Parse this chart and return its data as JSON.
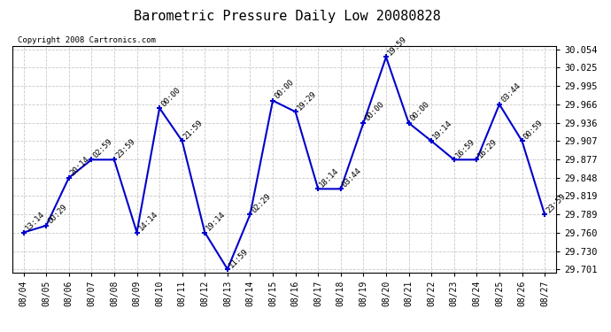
{
  "title": "Barometric Pressure Daily Low 20080828",
  "copyright": "Copyright 2008 Cartronics.com",
  "background_color": "#ffffff",
  "grid_color": "#c8c8c8",
  "line_color": "#0000cc",
  "marker_color": "#0000cc",
  "x_labels": [
    "08/04",
    "08/05",
    "08/06",
    "08/07",
    "08/08",
    "08/09",
    "08/10",
    "08/11",
    "08/12",
    "08/13",
    "08/14",
    "08/15",
    "08/16",
    "08/17",
    "08/18",
    "08/19",
    "08/20",
    "08/21",
    "08/22",
    "08/23",
    "08/24",
    "08/25",
    "08/26",
    "08/27"
  ],
  "y_values": [
    29.76,
    29.771,
    29.848,
    29.877,
    29.877,
    29.76,
    29.96,
    29.907,
    29.76,
    29.701,
    29.789,
    29.972,
    29.954,
    29.83,
    29.83,
    29.936,
    30.042,
    29.936,
    29.907,
    29.877,
    29.877,
    29.966,
    29.907,
    29.789
  ],
  "time_labels": [
    "13:14",
    "00:29",
    "20:14",
    "02:59",
    "23:59",
    "14:14",
    "00:00",
    "21:59",
    "19:14",
    "11:59",
    "02:29",
    "00:00",
    "19:29",
    "18:14",
    "03:44",
    "00:00",
    "19:59",
    "00:00",
    "19:14",
    "16:59",
    "16:29",
    "03:44",
    "00:59",
    "23:59"
  ],
  "ylim_min": 29.701,
  "ylim_max": 30.054,
  "yticks": [
    29.701,
    29.73,
    29.76,
    29.789,
    29.819,
    29.848,
    29.877,
    29.907,
    29.936,
    29.966,
    29.995,
    30.025,
    30.054
  ],
  "title_fontsize": 11,
  "tick_fontsize": 7,
  "annot_fontsize": 6.5
}
